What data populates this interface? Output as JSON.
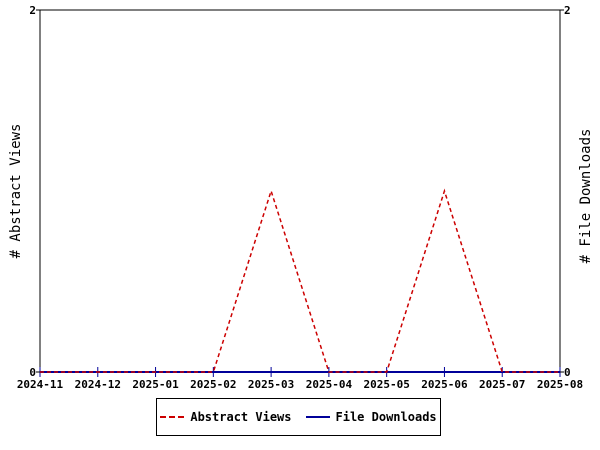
{
  "chart_data": {
    "type": "line",
    "x": [
      "2024-11",
      "2024-12",
      "2025-01",
      "2025-02",
      "2025-03",
      "2025-04",
      "2025-05",
      "2025-06",
      "2025-07",
      "2025-08"
    ],
    "series": [
      {
        "name": "Abstract Views",
        "values": [
          0,
          0,
          0,
          0,
          1,
          0,
          0,
          1,
          0,
          0
        ],
        "color": "#cc0000",
        "style": "dashed"
      },
      {
        "name": "File Downloads",
        "values": [
          0,
          0,
          0,
          0,
          0,
          0,
          0,
          0,
          0,
          0
        ],
        "color": "#000099",
        "style": "solid"
      }
    ],
    "ylabel": "# Abstract Views",
    "y2label": "# File Downloads",
    "ylim": [
      0,
      2
    ],
    "y2lim": [
      0,
      2
    ],
    "yticks": [
      "0",
      "2"
    ],
    "y2ticks": [
      "0",
      "2"
    ],
    "grid": false,
    "legend": "bottom"
  }
}
